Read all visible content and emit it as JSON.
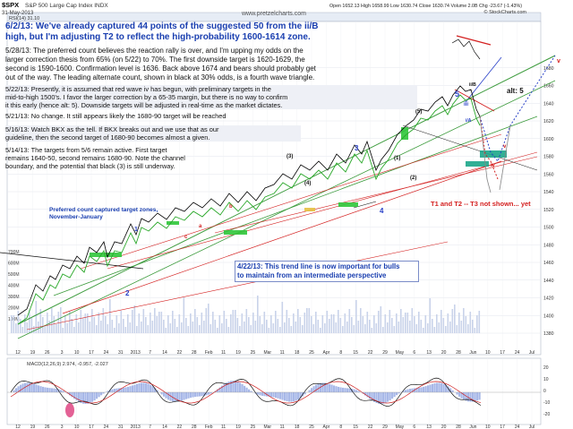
{
  "header": {
    "symbol": "$SPX",
    "name": "S&P 500 Large Cap Index  INDX",
    "date": "31-May-2013",
    "ohlc": "Open 1652.13  High 1658.99  Low 1630.74  Close 1630.74  Volume 2.0B  Chg -23.67 (-1.43%)",
    "rsi_label": "RSI(14) 31.10",
    "site": "© StockCharts.com",
    "watermark": "www.pretzelcharts.com"
  },
  "annotations": {
    "a1_line1": "6/2/13:  We've already captured 44 points of the suggested 50 from the ii/B",
    "a1_line2": "high, but I'm adjusting T2 to reflect the high-probability 1600-1614 zone.",
    "a2": [
      "5/28/13:  The preferred count believes the reaction rally is over, and I'm upping my odds on the",
      "larger correction thesis from 65% (on 5/22) to 70%.  The first downside target is 1620-1629, the",
      "second is 1590-1600.  Confirmation level is 1636.  Back above 1674 and bears should probably get",
      "out of the way.  The leading alternate count, shown in black at 30% odds, is a fourth wave triangle."
    ],
    "a3": [
      "5/22/13:  Presently, it is assumed that red wave iv has begun, with preliminary targets in the",
      "mid-to-high 1500's.  I favor the larger correction by a 65-35 margin, but there is no way to confirm",
      "it this early (hence alt: 5).  Downside targets will be adjusted in real-time as the market dictates."
    ],
    "a4": "5/21/13:  No change.   It still appears likely the 1680-90 target will be reached",
    "a5": [
      "5/16/13:  Watch BKX as the tell.  If BKX breaks out and we use that as our",
      "guideline, then the second  target of 1680-90 becomes almost a given."
    ],
    "a6": [
      "5/14/13:  The targets from 5/6 remain active.  First target",
      "remains 1640-50, second remains 1680-90.  Note the channel",
      "boundary, and the potential that black (3) is still underway."
    ],
    "a7": [
      "Preferred count captured target zones,",
      "November-January"
    ],
    "a8": [
      "4/22/13: This trend line is now important for bulls",
      "to maintain from an intermediate perspective"
    ],
    "a9": "T1 and T2 -- T3 not shown... yet",
    "alt": "alt: 5"
  },
  "wave_labels": [
    "5",
    "iv",
    "v",
    "(3)",
    "(4)",
    "(5)",
    "3",
    "4",
    "iii",
    "ii/B",
    "i/A",
    "a",
    "b",
    "c",
    "1",
    "2",
    "(1)",
    "(2)",
    "v"
  ],
  "axis": {
    "right_ticks": [
      "1680",
      "1660",
      "1640",
      "1620",
      "1600",
      "1580",
      "1560",
      "1540",
      "1520",
      "1500",
      "1480",
      "1460",
      "1440",
      "1420",
      "1400",
      "1380"
    ],
    "left_volume_ticks": [
      "700M",
      "600M",
      "500M",
      "400M",
      "300M",
      "200M",
      "100M"
    ],
    "x_ticks": [
      "12",
      "19",
      "26",
      "3",
      "10",
      "17",
      "24",
      "31",
      "2013",
      "7",
      "14",
      "22",
      "28",
      "Feb",
      "11",
      "19",
      "25",
      "Mar",
      "11",
      "18",
      "25",
      "Apr",
      "8",
      "15",
      "22",
      "29",
      "May",
      "6",
      "13",
      "20",
      "28",
      "Jun",
      "10",
      "17",
      "24",
      "Jul"
    ],
    "macd_label": "MACD(12,26,9) 2.974, -0.957, -2.027",
    "macd_right_ticks": [
      "20",
      "10",
      "0",
      "-10",
      "-20"
    ]
  },
  "colors": {
    "price": "#000000",
    "ma_green": "#2aa82a",
    "channel_green": "#3a9a3a",
    "red_wave": "#d42020",
    "blue_wave": "#2840c8",
    "note_blue": "#1a3fb0",
    "macd_black": "#111111",
    "macd_red": "#d02020",
    "hist_fill": "#a8b8e8",
    "target_box": "#1ca68a",
    "green_box": "#2fc63a"
  },
  "chart_data": {
    "type": "line",
    "title": "$SPX S&P 500 Large Cap Index  INDX",
    "x": [
      "Dec",
      "Jan",
      "Feb",
      "Mar",
      "Apr",
      "May",
      "Jun",
      "Jul"
    ],
    "series": [
      {
        "name": "$SPX",
        "values": [
          1410,
          1440,
          1510,
          1560,
          1570,
          1640,
          1631,
          null
        ]
      }
    ],
    "ylim": [
      1380,
      1700
    ],
    "annotations": [
      "T1 and T2 -- T3 not shown... yet"
    ],
    "grid": true
  }
}
